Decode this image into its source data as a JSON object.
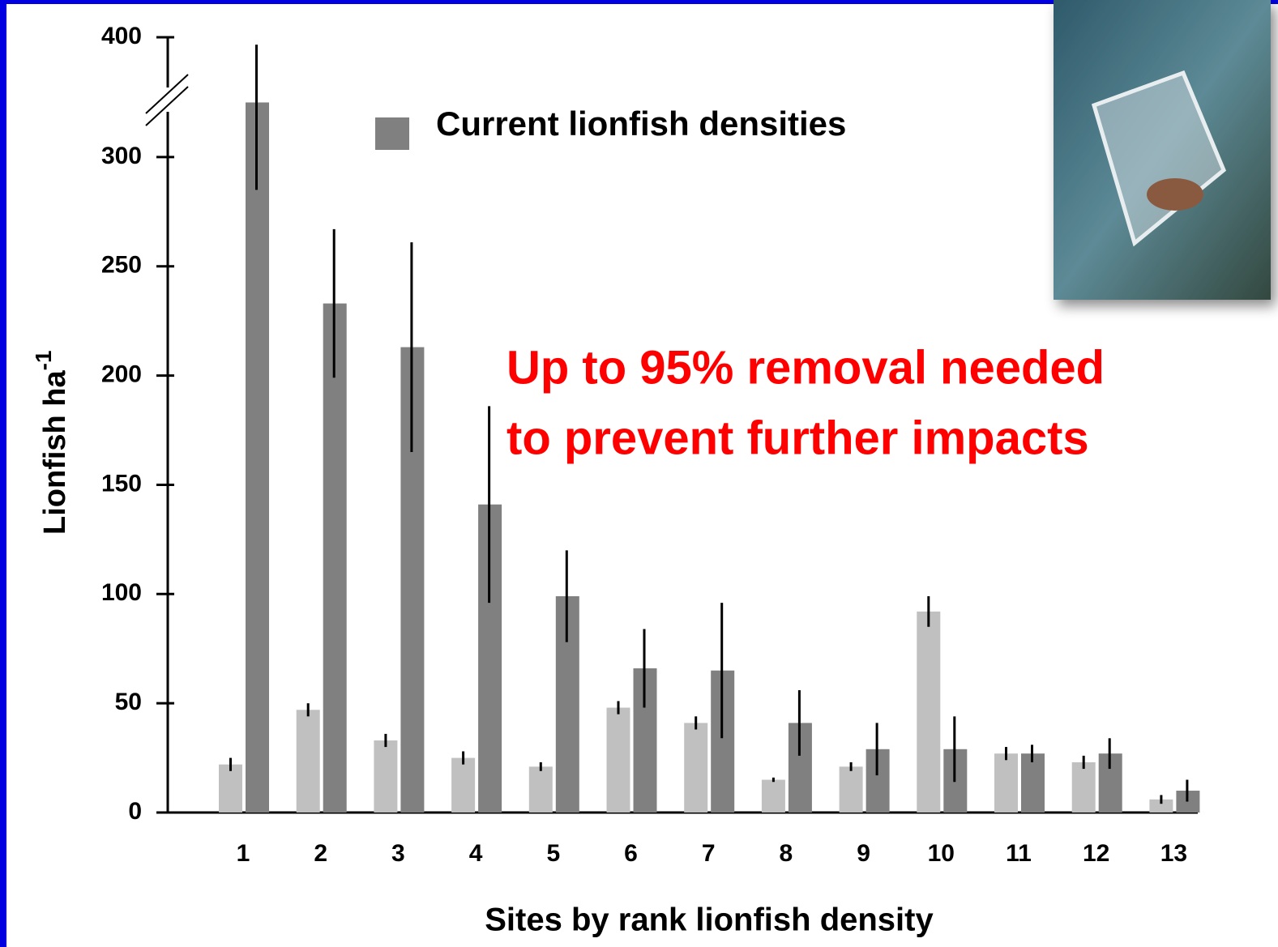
{
  "chart_data": {
    "type": "bar",
    "y_label": "Lionfish ha",
    "y_label_sup": "-1",
    "x_label": "Sites by rank lionfish density",
    "annotation_lines": [
      "Up to 95% removal needed",
      "to prevent further impacts"
    ],
    "categories": [
      "1",
      "2",
      "3",
      "4",
      "5",
      "6",
      "7",
      "8",
      "9",
      "10",
      "11",
      "12",
      "13"
    ],
    "series": [
      {
        "color": "#c0c0c0",
        "values": [
          22,
          47,
          33,
          25,
          21,
          48,
          41,
          15,
          21,
          92,
          27,
          23,
          6
        ],
        "errors": [
          3,
          3,
          3,
          3,
          2,
          3,
          3,
          1,
          2,
          7,
          3,
          3,
          2
        ]
      },
      {
        "name": "Current lionfish densities",
        "color": "#808080",
        "values": [
          325,
          233,
          213,
          141,
          99,
          66,
          65,
          41,
          29,
          29,
          27,
          27,
          10
        ],
        "errors": [
          40,
          34,
          48,
          45,
          21,
          18,
          31,
          15,
          12,
          15,
          4,
          7,
          5
        ]
      }
    ],
    "ylim": [
      0,
      400
    ],
    "axis_break": [
      350,
      400
    ],
    "yticks": [
      0,
      50,
      100,
      150,
      200,
      250,
      300,
      400
    ]
  }
}
